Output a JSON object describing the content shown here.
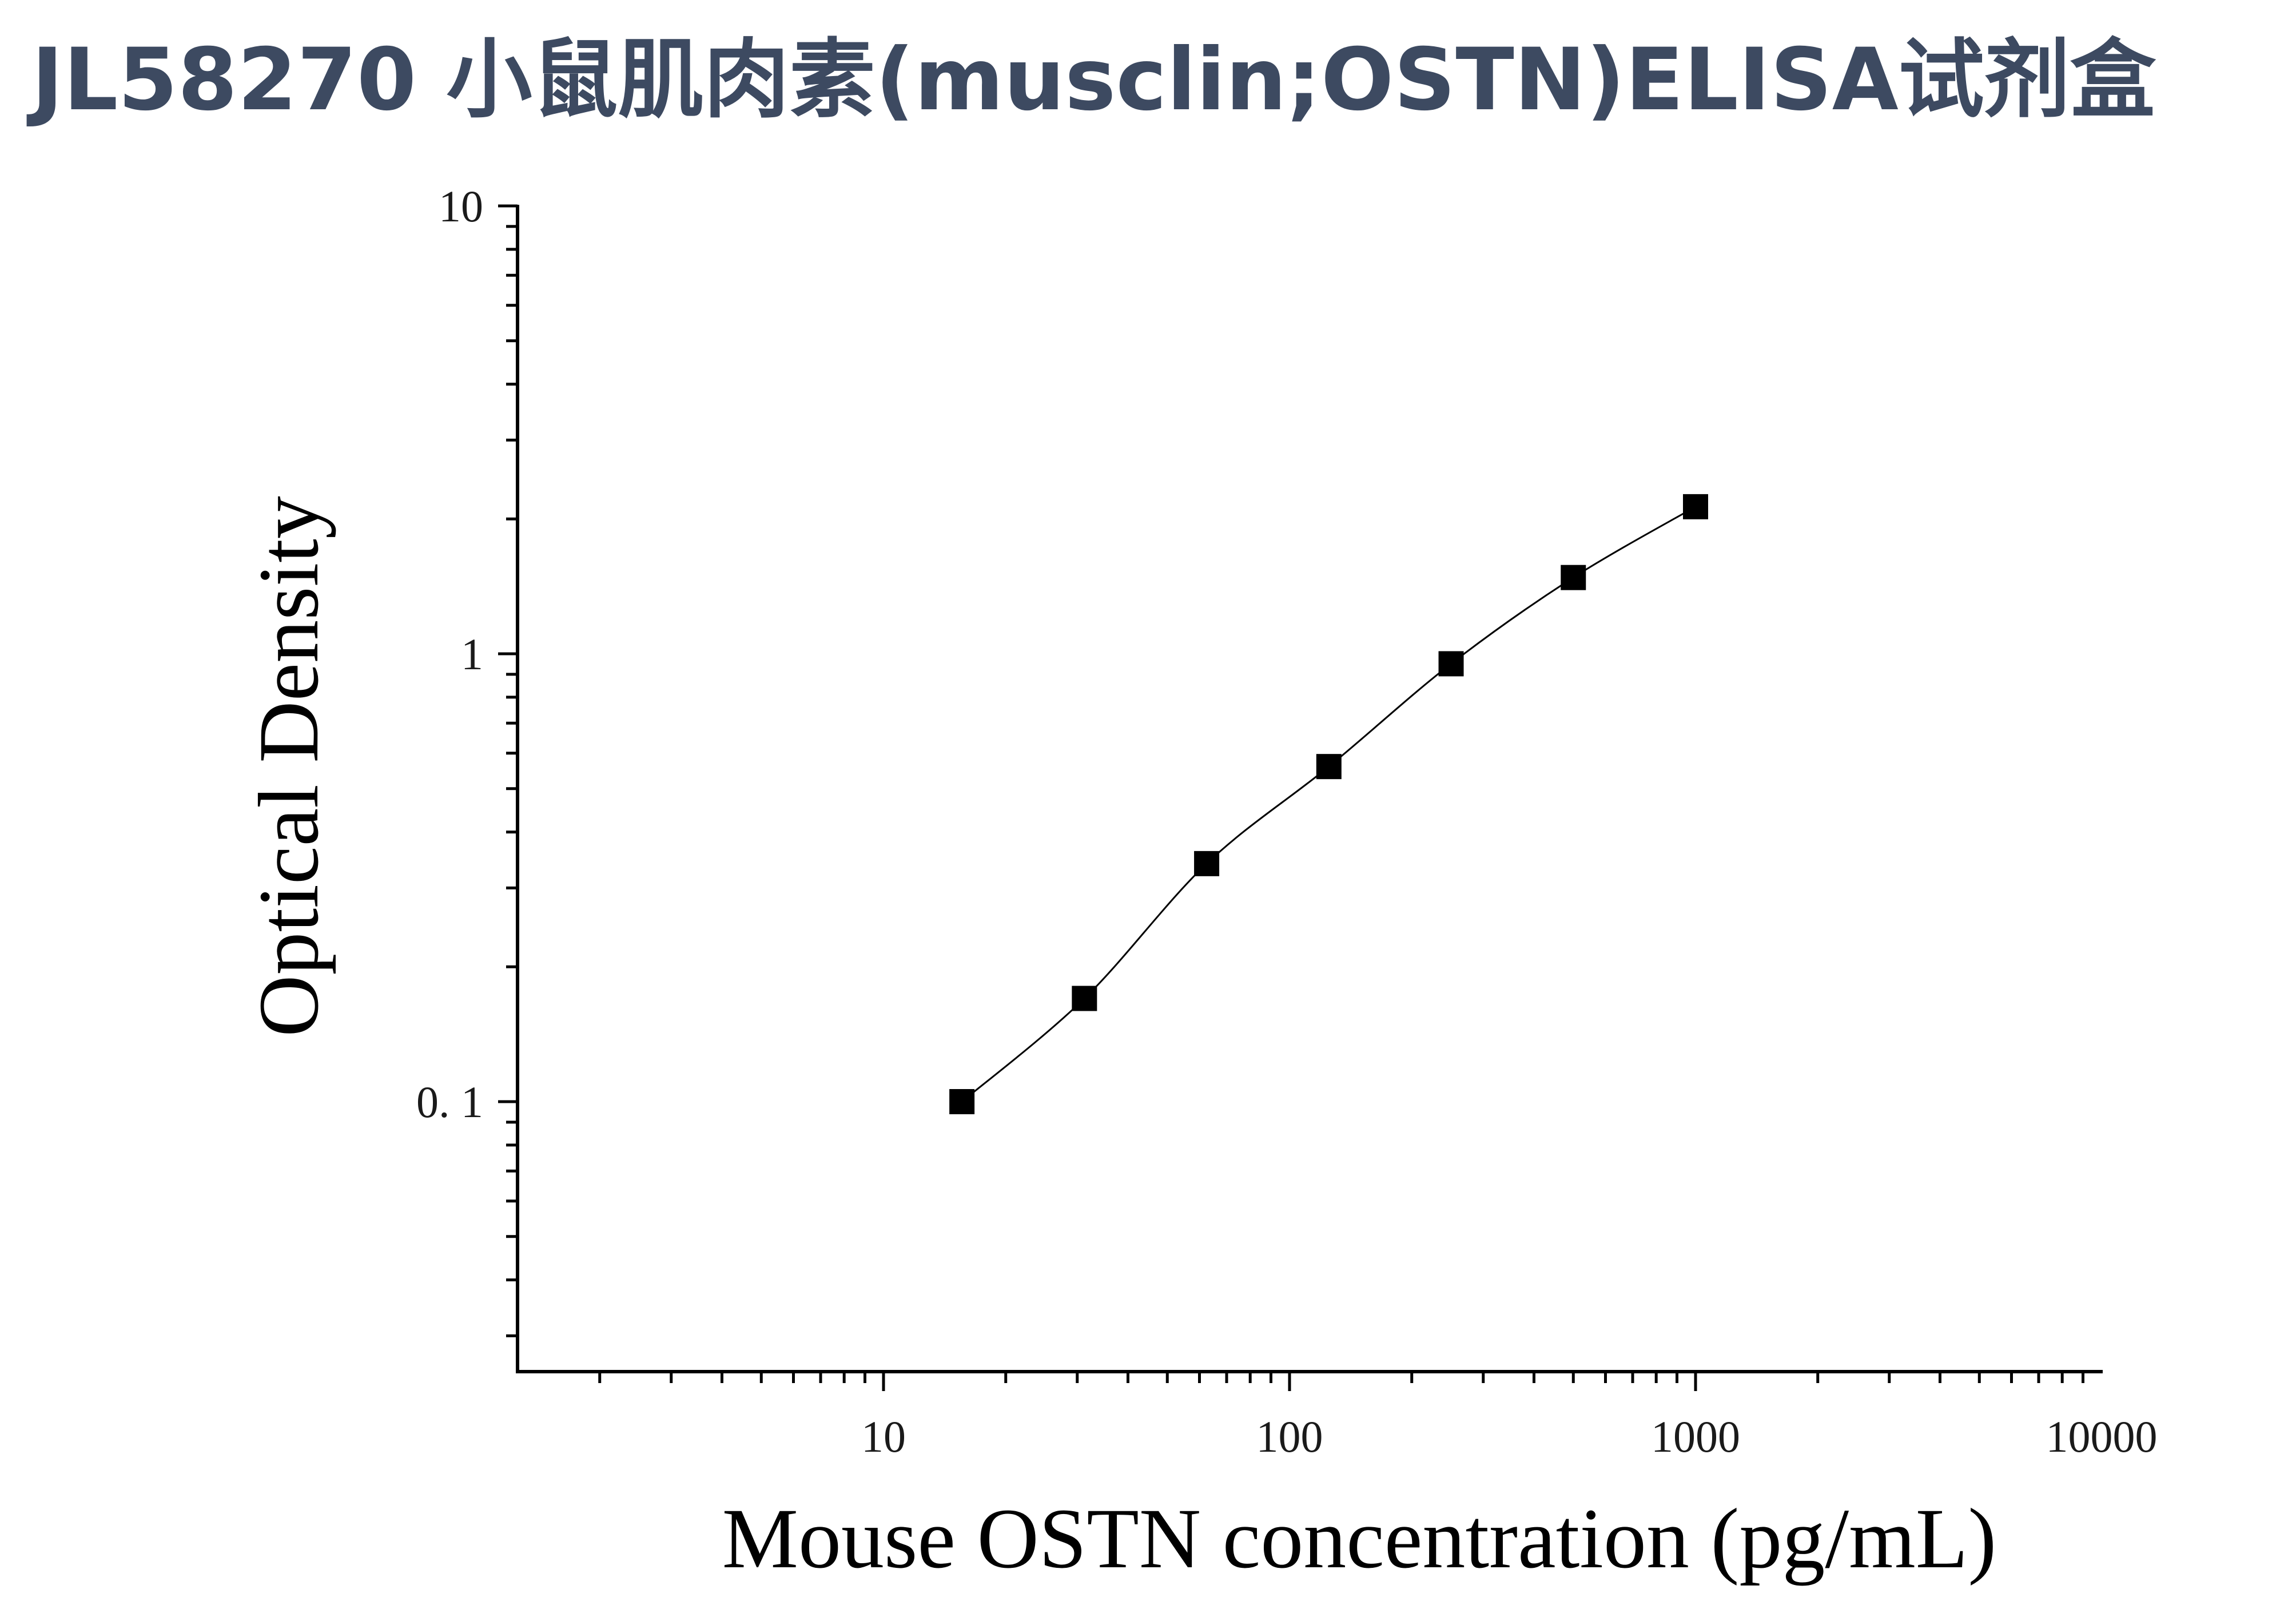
{
  "title": "JL58270 小鼠肌肉素(musclin;OSTN)ELISA试剂盒",
  "colors": {
    "title": "#3d4a61",
    "axis": "#000000",
    "marker": "#000000",
    "curve": "#000000"
  },
  "chart_data": {
    "type": "scatter",
    "xlabel": "Mouse OSTN concentration (pg/mL)",
    "ylabel": "Optical Density",
    "xscale": "log",
    "yscale": "log",
    "xlim": [
      1.3,
      10000
    ],
    "ylim": [
      0.025,
      10
    ],
    "x_ticks": [
      10,
      100,
      1000,
      10000
    ],
    "x_tick_labels": [
      "10",
      "100",
      "1000",
      "10000"
    ],
    "y_ticks": [
      0.1,
      1,
      10
    ],
    "y_tick_labels": [
      "0. 1",
      "1",
      "10"
    ],
    "grid": false,
    "legend": "none",
    "marker": "square",
    "fit_curve": true,
    "x": [
      15.6,
      31.25,
      62.5,
      125,
      250,
      500,
      1000
    ],
    "y": [
      0.1,
      0.17,
      0.34,
      0.56,
      0.95,
      1.48,
      2.13
    ]
  }
}
